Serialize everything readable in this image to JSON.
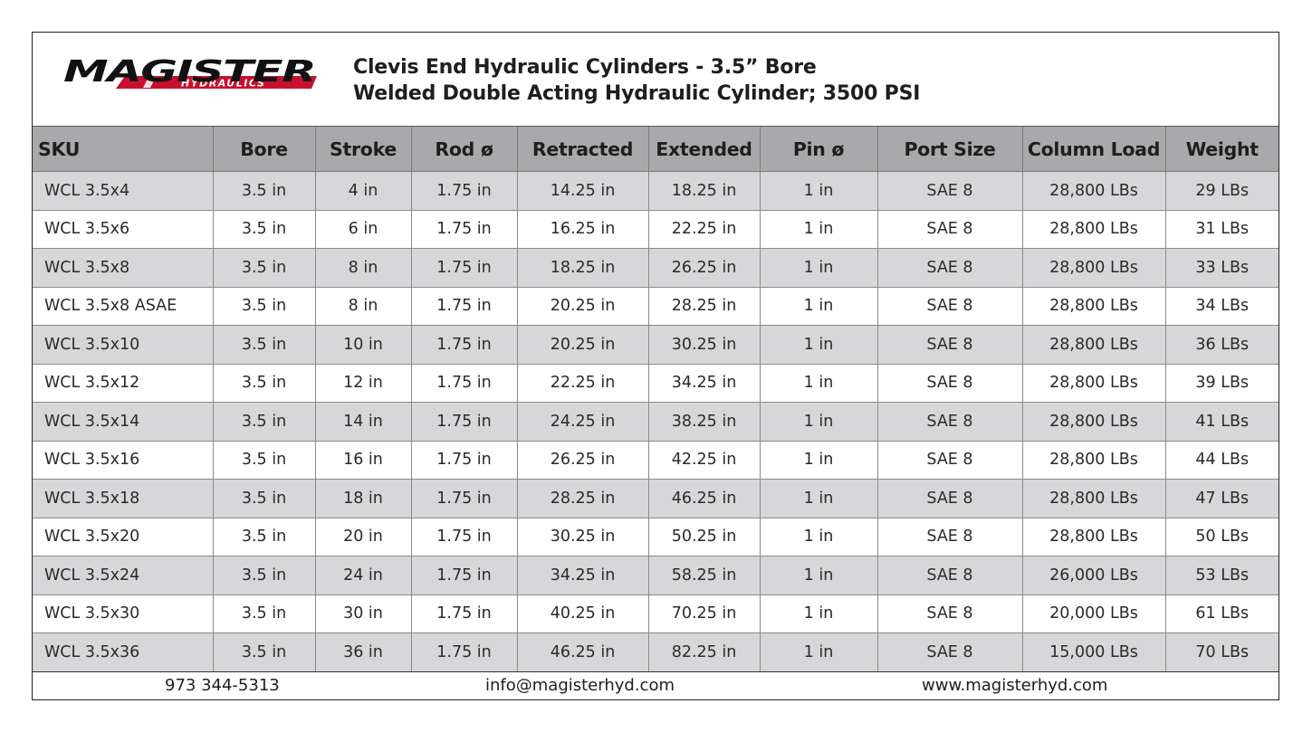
{
  "header": {
    "logo_text": "MAGISTER",
    "logo_subtext": "HYDRAULICS",
    "title_line1": "Clevis End Hydraulic Cylinders - 3.5” Bore",
    "title_line2": "Welded Double Acting Hydraulic Cylinder; 3500 PSI"
  },
  "colors": {
    "logo_red": "#c8102e",
    "header_row": "#a9a9ab",
    "stripe_row": "#d7d7d9",
    "text": "#1e1e1e"
  },
  "table": {
    "columns": [
      "SKU",
      "Bore",
      "Stroke",
      "Rod ø",
      "Retracted",
      "Extended",
      "Pin ø",
      "Port Size",
      "Column Load",
      "Weight"
    ],
    "rows": [
      [
        "WCL 3.5x4",
        "3.5 in",
        "4 in",
        "1.75 in",
        "14.25 in",
        "18.25 in",
        "1 in",
        "SAE 8",
        "28,800 LBs",
        "29 LBs"
      ],
      [
        "WCL 3.5x6",
        "3.5 in",
        "6 in",
        "1.75 in",
        "16.25 in",
        "22.25 in",
        "1 in",
        "SAE 8",
        "28,800 LBs",
        "31 LBs"
      ],
      [
        "WCL 3.5x8",
        "3.5 in",
        "8 in",
        "1.75 in",
        "18.25 in",
        "26.25 in",
        "1 in",
        "SAE 8",
        "28,800 LBs",
        "33 LBs"
      ],
      [
        "WCL 3.5x8 ASAE",
        "3.5 in",
        "8 in",
        "1.75 in",
        "20.25 in",
        "28.25 in",
        "1 in",
        "SAE 8",
        "28,800 LBs",
        "34 LBs"
      ],
      [
        "WCL 3.5x10",
        "3.5 in",
        "10 in",
        "1.75 in",
        "20.25 in",
        "30.25 in",
        "1 in",
        "SAE 8",
        "28,800 LBs",
        "36 LBs"
      ],
      [
        "WCL 3.5x12",
        "3.5 in",
        "12 in",
        "1.75 in",
        "22.25 in",
        "34.25 in",
        "1 in",
        "SAE 8",
        "28,800 LBs",
        "39 LBs"
      ],
      [
        "WCL 3.5x14",
        "3.5 in",
        "14 in",
        "1.75 in",
        "24.25 in",
        "38.25 in",
        "1 in",
        "SAE 8",
        "28,800 LBs",
        "41 LBs"
      ],
      [
        "WCL 3.5x16",
        "3.5 in",
        "16 in",
        "1.75 in",
        "26.25 in",
        "42.25 in",
        "1 in",
        "SAE 8",
        "28,800 LBs",
        "44 LBs"
      ],
      [
        "WCL 3.5x18",
        "3.5 in",
        "18 in",
        "1.75 in",
        "28.25 in",
        "46.25 in",
        "1 in",
        "SAE 8",
        "28,800 LBs",
        "47 LBs"
      ],
      [
        "WCL 3.5x20",
        "3.5 in",
        "20 in",
        "1.75 in",
        "30.25 in",
        "50.25 in",
        "1 in",
        "SAE 8",
        "28,800 LBs",
        "50 LBs"
      ],
      [
        "WCL 3.5x24",
        "3.5 in",
        "24 in",
        "1.75 in",
        "34.25 in",
        "58.25 in",
        "1 in",
        "SAE 8",
        "26,000 LBs",
        "53 LBs"
      ],
      [
        "WCL 3.5x30",
        "3.5 in",
        "30 in",
        "1.75 in",
        "40.25 in",
        "70.25 in",
        "1 in",
        "SAE 8",
        "20,000 LBs",
        "61 LBs"
      ],
      [
        "WCL 3.5x36",
        "3.5 in",
        "36 in",
        "1.75 in",
        "46.25 in",
        "82.25 in",
        "1 in",
        "SAE 8",
        "15,000 LBs",
        "70 LBs"
      ]
    ]
  },
  "footer": {
    "phone": "973 344-5313",
    "email": "info@magisterhyd.com",
    "website": "www.magisterhyd.com"
  }
}
